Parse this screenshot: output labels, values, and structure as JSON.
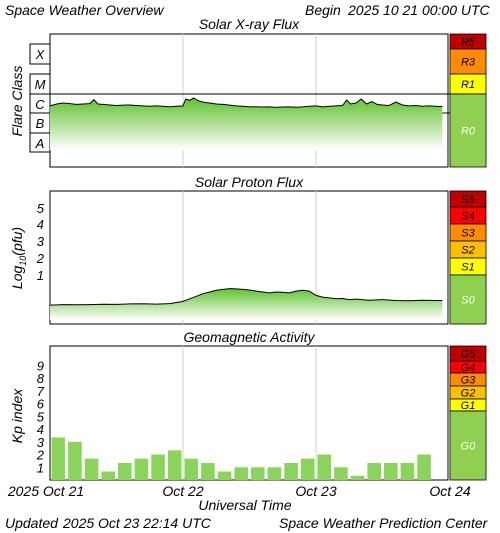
{
  "header": {
    "title": "Space Weather Overview",
    "begin_label": "Begin",
    "begin_datetime": "2025 10 21 00:00 UTC"
  },
  "footer": {
    "updated_label": "Updated",
    "updated_datetime": "2025 Oct 23 22:14 UTC",
    "credit": "Space Weather Prediction Center"
  },
  "colors": {
    "level_dark_red": "#c00000",
    "level_red": "#ff0000",
    "level_orange": "#ff8c00",
    "level_yellow_orange": "#ffc000",
    "level_yellow": "#ffff00",
    "level_green": "#8fd050",
    "plot_line": "#000000",
    "fill_green": "#6ac93a",
    "bar_green": "#8ad45c",
    "grid": "#d0d0d0"
  },
  "chart_data": [
    {
      "type": "area",
      "title": "Solar X-ray Flux",
      "ylabel": "Flare Class",
      "y_scale": "log",
      "y_tick_labels": [
        "X",
        "M",
        "C",
        "B",
        "A"
      ],
      "x_tick_labels": [
        "2025 Oct 21",
        "Oct 22",
        "Oct 23",
        "Oct 24"
      ],
      "x_days": [
        0,
        3
      ],
      "scale_levels": [
        {
          "label": "R5",
          "color": "#c00000"
        },
        {
          "label": "R3",
          "color": "#ff8c00"
        },
        {
          "label": "R1",
          "color": "#ffff00"
        },
        {
          "label": "R0",
          "color": "#8fd050"
        }
      ],
      "series": [
        {
          "x": [
            0.0,
            0.05,
            0.1,
            0.15,
            0.2,
            0.25,
            0.3,
            0.33,
            0.36,
            0.4,
            0.45,
            0.5,
            0.55,
            0.6,
            0.65,
            0.7,
            0.75,
            0.8,
            0.85,
            0.9,
            0.95,
            1.0,
            1.02,
            1.05,
            1.08,
            1.12,
            1.16,
            1.2,
            1.25,
            1.3,
            1.35,
            1.4,
            1.45,
            1.5,
            1.55,
            1.6,
            1.65,
            1.7,
            1.75,
            1.8,
            1.85,
            1.9,
            1.95,
            2.0,
            2.05,
            2.1,
            2.15,
            2.2,
            2.23,
            2.26,
            2.3,
            2.34,
            2.38,
            2.42,
            2.46,
            2.5,
            2.55,
            2.6,
            2.65,
            2.7,
            2.75,
            2.8,
            2.85,
            2.9,
            2.95
          ],
          "log_flux": [
            -6.1,
            -6.0,
            -5.95,
            -5.98,
            -6.02,
            -6.0,
            -5.98,
            -5.78,
            -6.0,
            -6.02,
            -6.05,
            -6.08,
            -6.06,
            -6.05,
            -6.08,
            -6.1,
            -6.12,
            -6.1,
            -6.12,
            -6.15,
            -6.12,
            -6.1,
            -5.75,
            -5.82,
            -5.7,
            -5.85,
            -5.92,
            -5.95,
            -6.0,
            -6.02,
            -6.06,
            -6.1,
            -6.12,
            -6.15,
            -6.14,
            -6.16,
            -6.15,
            -6.18,
            -6.16,
            -6.15,
            -6.17,
            -6.15,
            -6.12,
            -6.1,
            -6.15,
            -6.12,
            -6.1,
            -6.08,
            -5.8,
            -6.0,
            -5.95,
            -5.75,
            -6.0,
            -5.88,
            -6.02,
            -6.05,
            -6.08,
            -5.9,
            -6.05,
            -6.1,
            -6.08,
            -6.12,
            -6.1,
            -6.12,
            -6.13
          ]
        }
      ]
    },
    {
      "type": "area",
      "title": "Solar Proton Flux",
      "ylabel": "Log10(pfu)",
      "y_tick_labels": [
        "5",
        "4",
        "3",
        "2",
        "1"
      ],
      "x_days": [
        0,
        3
      ],
      "scale_levels": [
        {
          "label": "S5",
          "color": "#c00000"
        },
        {
          "label": "S4",
          "color": "#ff0000"
        },
        {
          "label": "S3",
          "color": "#ff8c00"
        },
        {
          "label": "S2",
          "color": "#ffc000"
        },
        {
          "label": "S1",
          "color": "#ffff00"
        },
        {
          "label": "S0",
          "color": "#8fd050"
        }
      ],
      "series": [
        {
          "x": [
            0.0,
            0.1,
            0.2,
            0.3,
            0.4,
            0.5,
            0.6,
            0.7,
            0.8,
            0.9,
            1.0,
            1.05,
            1.1,
            1.15,
            1.2,
            1.25,
            1.3,
            1.35,
            1.4,
            1.45,
            1.5,
            1.55,
            1.6,
            1.65,
            1.7,
            1.75,
            1.8,
            1.85,
            1.9,
            1.95,
            2.0,
            2.05,
            2.1,
            2.15,
            2.2,
            2.25,
            2.3,
            2.4,
            2.5,
            2.6,
            2.7,
            2.8,
            2.9,
            2.95
          ],
          "log_flux": [
            -0.77,
            -0.74,
            -0.75,
            -0.74,
            -0.72,
            -0.73,
            -0.7,
            -0.69,
            -0.71,
            -0.68,
            -0.55,
            -0.4,
            -0.25,
            -0.1,
            0.0,
            0.1,
            0.15,
            0.2,
            0.18,
            0.15,
            0.12,
            0.05,
            0.0,
            -0.05,
            0.0,
            -0.02,
            -0.05,
            0.05,
            0.1,
            0.05,
            -0.2,
            -0.3,
            -0.35,
            -0.4,
            -0.38,
            -0.45,
            -0.42,
            -0.48,
            -0.45,
            -0.5,
            -0.52,
            -0.48,
            -0.5,
            -0.5
          ]
        }
      ]
    },
    {
      "type": "bar",
      "title": "Geomagnetic Activity",
      "ylabel": "Kp index",
      "xlabel": "Universal Time",
      "ylim": [
        0,
        9
      ],
      "y_tick_labels": [
        "9",
        "8",
        "7",
        "6",
        "5",
        "4",
        "3",
        "2",
        "1"
      ],
      "x_tick_labels": [
        "2025 Oct 21",
        "Oct 22",
        "Oct 23",
        "Oct 24"
      ],
      "bar_hours": 3,
      "scale_levels": [
        {
          "label": "G5",
          "color": "#c00000"
        },
        {
          "label": "G4",
          "color": "#ff0000"
        },
        {
          "label": "G3",
          "color": "#ff8c00"
        },
        {
          "label": "G2",
          "color": "#ffc000"
        },
        {
          "label": "G1",
          "color": "#ffff00"
        },
        {
          "label": "G0",
          "color": "#8fd050"
        }
      ],
      "values": [
        3.33,
        3.0,
        1.67,
        0.67,
        1.33,
        1.67,
        2.0,
        2.33,
        1.67,
        1.33,
        0.67,
        1.0,
        1.0,
        1.0,
        1.33,
        1.67,
        2.0,
        1.0,
        0.33,
        1.33,
        1.33,
        1.33,
        2.0
      ]
    }
  ]
}
